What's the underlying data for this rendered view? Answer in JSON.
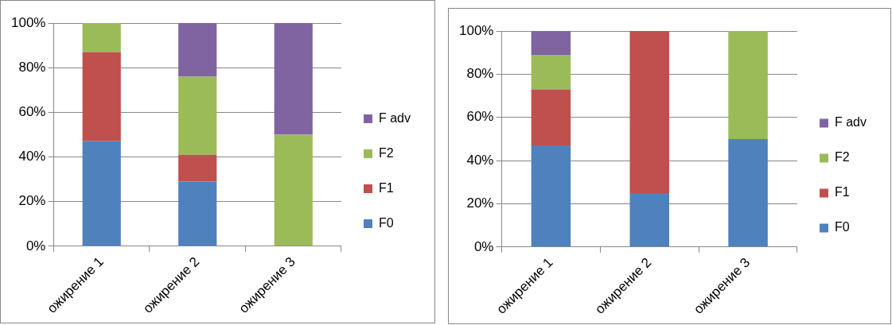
{
  "chart_data": [
    {
      "type": "bar",
      "stacked": true,
      "categories": [
        "ожирение 1",
        "ожирение 2",
        "ожирение 3"
      ],
      "series": [
        {
          "name": "F0",
          "color": "#4f81bd",
          "values": [
            47,
            29,
            0
          ]
        },
        {
          "name": "F1",
          "color": "#c0504d",
          "values": [
            40,
            12,
            0
          ]
        },
        {
          "name": "F2",
          "color": "#9bbb59",
          "values": [
            13,
            35,
            50
          ]
        },
        {
          "name": "F adv",
          "color": "#8064a2",
          "values": [
            0,
            24,
            50
          ]
        }
      ],
      "ylim": [
        0,
        100
      ],
      "yticks": [
        {
          "value": 0,
          "label": "0%"
        },
        {
          "value": 20,
          "label": "20%"
        },
        {
          "value": 40,
          "label": "40%"
        },
        {
          "value": 60,
          "label": "60%"
        },
        {
          "value": 80,
          "label": "80%"
        },
        {
          "value": 100,
          "label": "100%"
        }
      ],
      "grid": "y",
      "legend": "right"
    },
    {
      "type": "bar",
      "stacked": true,
      "categories": [
        "ожирение 1",
        "ожирение 2",
        "ожирение 3"
      ],
      "series": [
        {
          "name": "F0",
          "color": "#4f81bd",
          "values": [
            47,
            25,
            50
          ]
        },
        {
          "name": "F1",
          "color": "#c0504d",
          "values": [
            26,
            75,
            0
          ]
        },
        {
          "name": "F2",
          "color": "#9bbb59",
          "values": [
            16,
            0,
            50
          ]
        },
        {
          "name": "F adv",
          "color": "#8064a2",
          "values": [
            11,
            0,
            0
          ]
        }
      ],
      "ylim": [
        0,
        100
      ],
      "yticks": [
        {
          "value": 0,
          "label": "0%"
        },
        {
          "value": 20,
          "label": "20%"
        },
        {
          "value": 40,
          "label": "40%"
        },
        {
          "value": 60,
          "label": "60%"
        },
        {
          "value": 80,
          "label": "80%"
        },
        {
          "value": 100,
          "label": "100%"
        }
      ],
      "grid": "y",
      "legend": "right"
    }
  ]
}
